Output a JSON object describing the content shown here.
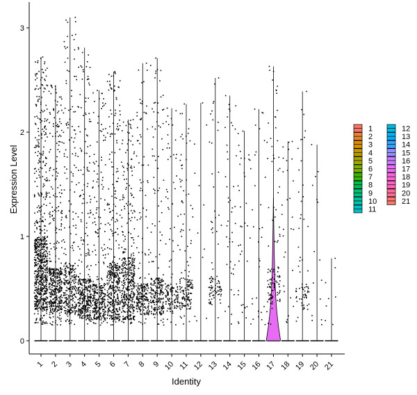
{
  "chart_data": {
    "type": "violin",
    "xlabel": "Identity",
    "ylabel": "Expression Level",
    "ylim": [
      -0.12,
      3.13
    ],
    "yticks": [
      0,
      1,
      2,
      3
    ],
    "categories": [
      "1",
      "2",
      "3",
      "4",
      "5",
      "6",
      "7",
      "8",
      "9",
      "10",
      "11",
      "12",
      "13",
      "14",
      "15",
      "16",
      "17",
      "18",
      "19",
      "20",
      "21"
    ],
    "colors": [
      "#F8766D",
      "#EA8331",
      "#D89000",
      "#C09B00",
      "#A3A500",
      "#7CAE00",
      "#39B600",
      "#00BB4E",
      "#00BF7D",
      "#00C1A3",
      "#00BFC4",
      "#00BAE0",
      "#00B0F6",
      "#35A2FF",
      "#9590FF",
      "#C77CFF",
      "#E76BF3",
      "#FA62DB",
      "#FF62BC",
      "#FF6A98",
      "#F8766D"
    ],
    "max_values": [
      2.72,
      2.45,
      3.1,
      2.81,
      2.4,
      2.58,
      2.12,
      2.66,
      2.71,
      2.23,
      2.27,
      2.28,
      2.52,
      2.35,
      2.01,
      2.22,
      2.63,
      1.91,
      2.39,
      1.88,
      0.79
    ],
    "n_points": [
      760,
      460,
      330,
      390,
      330,
      420,
      430,
      230,
      240,
      140,
      160,
      12,
      90,
      45,
      40,
      30,
      120,
      30,
      70,
      15,
      8
    ],
    "dense_bands": [
      [
        0.3,
        1.0
      ],
      [
        0.25,
        0.7
      ],
      [
        0.25,
        0.75
      ],
      [
        0.2,
        0.6
      ],
      [
        0.2,
        0.55
      ],
      [
        0.2,
        0.75
      ],
      [
        0.2,
        0.8
      ],
      [
        0.25,
        0.55
      ],
      [
        0.25,
        0.6
      ],
      [
        0.3,
        0.55
      ],
      [
        0.3,
        0.6
      ],
      null,
      [
        0.35,
        0.6
      ],
      null,
      null,
      null,
      [
        0.35,
        0.7
      ],
      null,
      [
        0.3,
        0.55
      ],
      null,
      null
    ],
    "highlight_violin": {
      "category": "17",
      "peak_y": 0.22,
      "upper_extent": 1.38
    },
    "legend": {
      "position": "right",
      "columns": 2
    }
  }
}
